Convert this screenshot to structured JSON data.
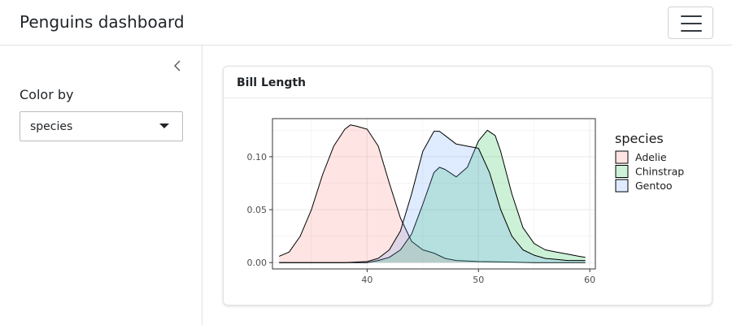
{
  "header": {
    "title": "Penguins dashboard",
    "menu_icon": "hamburger-menu-icon"
  },
  "sidebar": {
    "collapse_icon": "chevron-left-icon",
    "color_by_label": "Color by",
    "color_by_value": "species"
  },
  "card": {
    "title": "Bill Length"
  },
  "chart_data": {
    "type": "area",
    "xlabel": "",
    "ylabel": "",
    "xlim": [
      31.5,
      60.5
    ],
    "ylim": [
      -0.006,
      0.136
    ],
    "x_ticks": [
      40,
      50,
      60
    ],
    "y_ticks": [
      0.0,
      0.05,
      0.1
    ],
    "x_tick_labels": [
      "40",
      "50",
      "60"
    ],
    "y_tick_labels": [
      "0.00",
      "0.05",
      "0.10"
    ],
    "grid": true,
    "legend": {
      "title": "species",
      "position": "right",
      "entries": [
        "Adelie",
        "Chinstrap",
        "Gentoo"
      ]
    },
    "series": [
      {
        "name": "Adelie",
        "color": "#f8766d",
        "x": [
          32.1,
          33,
          34,
          35,
          36,
          37,
          38,
          38.5,
          39,
          40,
          41,
          42,
          43,
          44,
          45,
          46,
          47,
          48,
          50,
          55,
          58,
          59.6
        ],
        "y": [
          0.006,
          0.01,
          0.025,
          0.05,
          0.083,
          0.11,
          0.126,
          0.13,
          0.129,
          0.126,
          0.11,
          0.075,
          0.042,
          0.02,
          0.012,
          0.009,
          0.004,
          0.002,
          0.001,
          0.0,
          0.0,
          0.0
        ]
      },
      {
        "name": "Chinstrap",
        "color": "#00ba38",
        "x": [
          32.1,
          36,
          40,
          41,
          42,
          43,
          44,
          45,
          46,
          46.5,
          47,
          48,
          49,
          50,
          50.8,
          51.5,
          52,
          53,
          54,
          55,
          56,
          57,
          58,
          59,
          59.6
        ],
        "y": [
          0.0,
          0.0,
          0.0,
          0.002,
          0.005,
          0.012,
          0.027,
          0.055,
          0.085,
          0.09,
          0.088,
          0.081,
          0.09,
          0.115,
          0.125,
          0.12,
          0.105,
          0.065,
          0.033,
          0.018,
          0.012,
          0.01,
          0.008,
          0.006,
          0.005
        ]
      },
      {
        "name": "Gentoo",
        "color": "#619cff",
        "x": [
          32.1,
          38,
          40,
          41,
          42,
          43,
          44,
          45,
          46,
          46.5,
          47,
          48,
          49,
          50,
          51,
          52,
          53,
          54,
          55,
          56,
          57,
          58,
          59,
          59.6
        ],
        "y": [
          0.0,
          0.0,
          0.001,
          0.004,
          0.012,
          0.03,
          0.065,
          0.105,
          0.124,
          0.124,
          0.12,
          0.112,
          0.11,
          0.108,
          0.085,
          0.05,
          0.025,
          0.012,
          0.007,
          0.004,
          0.003,
          0.002,
          0.002,
          0.002
        ]
      }
    ]
  }
}
